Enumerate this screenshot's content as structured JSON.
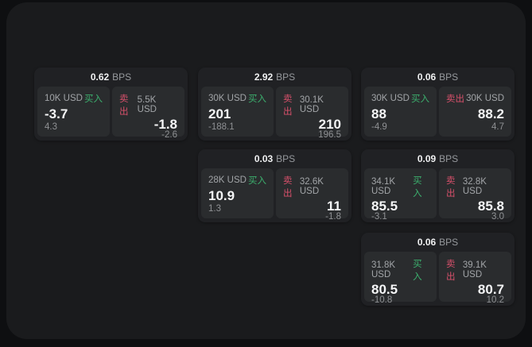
{
  "app": {
    "background": "#0e0f11",
    "panel_background": "#1a1b1d",
    "card_background": "#202124",
    "tile_background": "#2a2c2e"
  },
  "colors": {
    "buy_green": "#3cb06e",
    "sell_red": "#d8506b",
    "value_white": "#f5f6f7",
    "muted_gray": "#96999d"
  },
  "labels": {
    "buy": "买入",
    "sell": "卖出",
    "bps_unit": "BPS"
  },
  "cards": [
    {
      "bps": "0.62",
      "buy": {
        "amount": "10K USD",
        "price": "-3.7",
        "delta": "4.3"
      },
      "sell": {
        "amount": "5.5K USD",
        "price": "-1.8",
        "delta": "-2.6"
      }
    },
    {
      "bps": "2.92",
      "buy": {
        "amount": "30K USD",
        "price": "201",
        "delta": "-188.1"
      },
      "sell": {
        "amount": "30.1K USD",
        "price": "210",
        "delta": "196.5"
      }
    },
    {
      "bps": "0.06",
      "buy": {
        "amount": "30K USD",
        "price": "88",
        "delta": "-4.9"
      },
      "sell": {
        "amount": "30K USD",
        "price": "88.2",
        "delta": "4.7"
      }
    },
    {
      "bps": "0.03",
      "buy": {
        "amount": "28K USD",
        "price": "10.9",
        "delta": "1.3"
      },
      "sell": {
        "amount": "32.6K USD",
        "price": "11",
        "delta": "-1.8"
      }
    },
    {
      "bps": "0.09",
      "buy": {
        "amount": "34.1K USD",
        "price": "85.5",
        "delta": "-3.1"
      },
      "sell": {
        "amount": "32.8K USD",
        "price": "85.8",
        "delta": "3.0"
      }
    },
    {
      "bps": "0.06",
      "buy": {
        "amount": "31.8K USD",
        "price": "80.5",
        "delta": "-10.8"
      },
      "sell": {
        "amount": "39.1K USD",
        "price": "80.7",
        "delta": "10.2"
      }
    }
  ]
}
